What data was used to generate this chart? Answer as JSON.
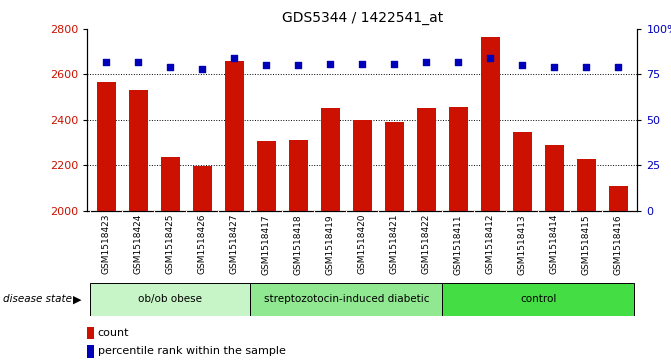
{
  "title": "GDS5344 / 1422541_at",
  "samples": [
    "GSM1518423",
    "GSM1518424",
    "GSM1518425",
    "GSM1518426",
    "GSM1518427",
    "GSM1518417",
    "GSM1518418",
    "GSM1518419",
    "GSM1518420",
    "GSM1518421",
    "GSM1518422",
    "GSM1518411",
    "GSM1518412",
    "GSM1518413",
    "GSM1518414",
    "GSM1518415",
    "GSM1518416"
  ],
  "counts": [
    2565,
    2530,
    2235,
    2195,
    2660,
    2305,
    2310,
    2450,
    2400,
    2390,
    2450,
    2455,
    2765,
    2345,
    2290,
    2225,
    2110
  ],
  "percentiles": [
    82,
    82,
    79,
    78,
    84,
    80,
    80,
    81,
    81,
    81,
    82,
    82,
    84,
    80,
    79,
    79,
    79
  ],
  "groups": [
    {
      "label": "ob/ob obese",
      "start": 0,
      "end": 5,
      "color": "#c8f5c8"
    },
    {
      "label": "streptozotocin-induced diabetic",
      "start": 5,
      "end": 11,
      "color": "#90e890"
    },
    {
      "label": "control",
      "start": 11,
      "end": 17,
      "color": "#44dd44"
    }
  ],
  "bar_color": "#cc1100",
  "dot_color": "#0000bb",
  "ylim_left": [
    2000,
    2800
  ],
  "ylim_right": [
    0,
    100
  ],
  "yticks_left": [
    2000,
    2200,
    2400,
    2600,
    2800
  ],
  "yticks_right": [
    0,
    25,
    50,
    75,
    100
  ],
  "grid_values": [
    2200,
    2400,
    2600
  ],
  "plot_bg_color": "#ffffff",
  "xtick_bg_color": "#d0d0d0"
}
